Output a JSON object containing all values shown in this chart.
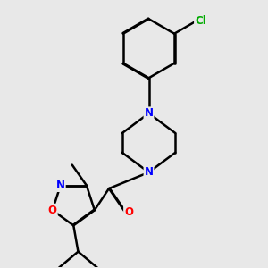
{
  "background_color": "#e8e8e8",
  "bond_color": "#000000",
  "atom_colors": {
    "N": "#0000ff",
    "O": "#ff0000",
    "Cl": "#00aa00",
    "C": "#000000"
  },
  "figsize": [
    3.0,
    3.0
  ],
  "dpi": 100
}
